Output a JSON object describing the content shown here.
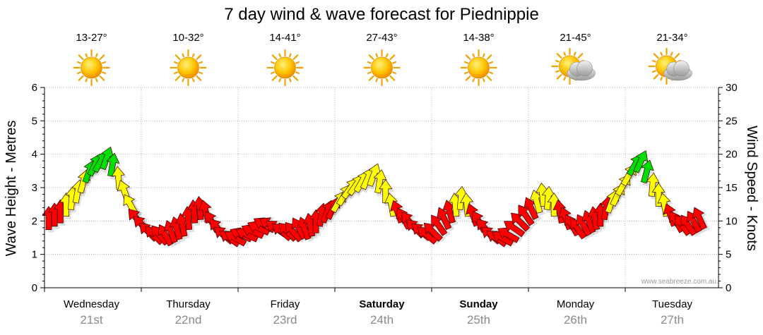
{
  "chart_data": {
    "type": "line",
    "title": "7 day wind & wave forecast for Piednippie",
    "ylabel_left": "Wave Height - Metres",
    "ylabel_right": "Wind Speed - Knots",
    "ylim_left": [
      0,
      6
    ],
    "ylim_right": [
      0,
      30
    ],
    "yticks_left": [
      "0",
      "1",
      "2",
      "3",
      "4",
      "5",
      "6"
    ],
    "yticks_right": [
      "0",
      "5",
      "10",
      "15",
      "20",
      "25",
      "30"
    ],
    "credit": "www.seabreeze.com.au",
    "days": [
      {
        "name": "Wednesday",
        "date": "21st",
        "temp": "13-27°",
        "weather": "sunny",
        "bold": false
      },
      {
        "name": "Thursday",
        "date": "22nd",
        "temp": "10-32°",
        "weather": "sunny",
        "bold": false
      },
      {
        "name": "Friday",
        "date": "23rd",
        "temp": "14-41°",
        "weather": "sunny",
        "bold": false
      },
      {
        "name": "Saturday",
        "date": "24th",
        "temp": "27-43°",
        "weather": "sunny",
        "bold": true
      },
      {
        "name": "Sunday",
        "date": "25th",
        "temp": "14-38°",
        "weather": "sunny",
        "bold": true
      },
      {
        "name": "Monday",
        "date": "26th",
        "temp": "21-45°",
        "weather": "partly-cloudy",
        "bold": false
      },
      {
        "name": "Tuesday",
        "date": "27th",
        "temp": "21-34°",
        "weather": "partly-cloudy",
        "bold": false
      }
    ],
    "wind_color_scale": [
      {
        "max_knots": 12,
        "color": "#ff0000"
      },
      {
        "max_knots": 17,
        "color": "#ffff00"
      },
      {
        "max_knots": 30,
        "color": "#00dd00"
      }
    ],
    "wind_series": {
      "name": "Wind",
      "unit": "knots",
      "x_days": [
        0.0,
        0.06,
        0.12,
        0.18,
        0.24,
        0.3,
        0.36,
        0.42,
        0.48,
        0.54,
        0.6,
        0.66,
        0.72,
        0.78,
        0.84,
        0.9,
        0.96,
        1.02,
        1.08,
        1.14,
        1.2,
        1.26,
        1.32,
        1.38,
        1.44,
        1.5,
        1.56,
        1.62,
        1.68,
        1.74,
        1.8,
        1.86,
        1.92,
        1.98,
        2.04,
        2.1,
        2.16,
        2.22,
        2.28,
        2.34,
        2.4,
        2.46,
        2.52,
        2.58,
        2.64,
        2.7,
        2.76,
        2.82,
        2.88,
        2.94,
        3.0,
        3.06,
        3.12,
        3.18,
        3.24,
        3.3,
        3.36,
        3.42,
        3.48,
        3.54,
        3.6,
        3.66,
        3.72,
        3.78,
        3.84,
        3.9,
        3.96,
        4.02,
        4.08,
        4.14,
        4.2,
        4.26,
        4.32,
        4.38,
        4.44,
        4.5,
        4.56,
        4.62,
        4.68,
        4.74,
        4.8,
        4.86,
        4.92,
        4.98,
        5.04,
        5.1,
        5.16,
        5.22,
        5.28,
        5.34,
        5.4,
        5.46,
        5.52,
        5.58,
        5.64,
        5.7,
        5.76,
        5.82,
        5.88,
        5.94,
        6.0,
        6.06,
        6.12,
        6.18,
        6.24,
        6.3,
        6.36,
        6.42,
        6.48,
        6.54,
        6.6,
        6.66,
        6.72
      ],
      "speed": [
        10.5,
        11.0,
        11.5,
        12.5,
        13.5,
        14.5,
        16.0,
        17.5,
        18.5,
        19.0,
        19.5,
        18.5,
        16.5,
        14.5,
        12.5,
        10.5,
        9.5,
        8.5,
        8.0,
        8.0,
        8.0,
        8.5,
        9.0,
        9.5,
        10.5,
        11.5,
        12.0,
        11.5,
        10.0,
        9.0,
        8.0,
        7.5,
        7.5,
        8.0,
        8.0,
        8.5,
        9.0,
        9.5,
        9.5,
        9.0,
        8.5,
        8.5,
        8.5,
        9.0,
        9.0,
        9.5,
        10.0,
        11.0,
        11.5,
        12.0,
        13.0,
        14.0,
        15.0,
        15.5,
        16.0,
        16.5,
        17.0,
        16.0,
        14.5,
        12.5,
        11.5,
        10.5,
        10.0,
        9.0,
        8.5,
        8.0,
        8.5,
        9.5,
        10.5,
        11.5,
        12.5,
        13.5,
        12.5,
        11.0,
        10.0,
        9.0,
        8.0,
        7.5,
        7.5,
        8.0,
        9.0,
        10.0,
        11.0,
        12.0,
        13.0,
        14.0,
        13.5,
        12.5,
        11.5,
        10.5,
        9.5,
        9.0,
        9.5,
        10.0,
        10.5,
        11.0,
        12.0,
        13.0,
        14.0,
        15.5,
        17.0,
        18.5,
        19.0,
        17.5,
        15.5,
        14.0,
        12.5,
        11.0,
        10.0,
        9.5,
        9.5,
        10.0,
        10.5
      ],
      "direction_deg": [
        180,
        180,
        180,
        180,
        185,
        190,
        195,
        200,
        205,
        210,
        200,
        190,
        175,
        160,
        150,
        140,
        135,
        135,
        135,
        140,
        150,
        160,
        165,
        170,
        175,
        175,
        175,
        165,
        150,
        140,
        130,
        125,
        120,
        115,
        115,
        115,
        115,
        120,
        120,
        125,
        130,
        135,
        140,
        150,
        160,
        170,
        180,
        190,
        200,
        205,
        210,
        210,
        215,
        215,
        210,
        205,
        200,
        190,
        180,
        170,
        160,
        150,
        140,
        135,
        130,
        130,
        135,
        145,
        155,
        165,
        175,
        185,
        175,
        160,
        150,
        140,
        130,
        125,
        120,
        120,
        125,
        135,
        145,
        155,
        165,
        175,
        185,
        180,
        170,
        160,
        150,
        145,
        150,
        160,
        170,
        180,
        190,
        200,
        205,
        210,
        210,
        210,
        205,
        195,
        185,
        180,
        170,
        160,
        150,
        145,
        145,
        150,
        155
      ]
    },
    "wave_series": {
      "name": "Wave height",
      "unit": "metres",
      "x_days": [
        0.0,
        1.0,
        2.0,
        3.0,
        4.0,
        5.0,
        6.0,
        6.72
      ],
      "height": [
        0.0,
        0.0,
        0.0,
        0.0,
        0.0,
        0.0,
        0.0,
        0.0
      ]
    }
  }
}
